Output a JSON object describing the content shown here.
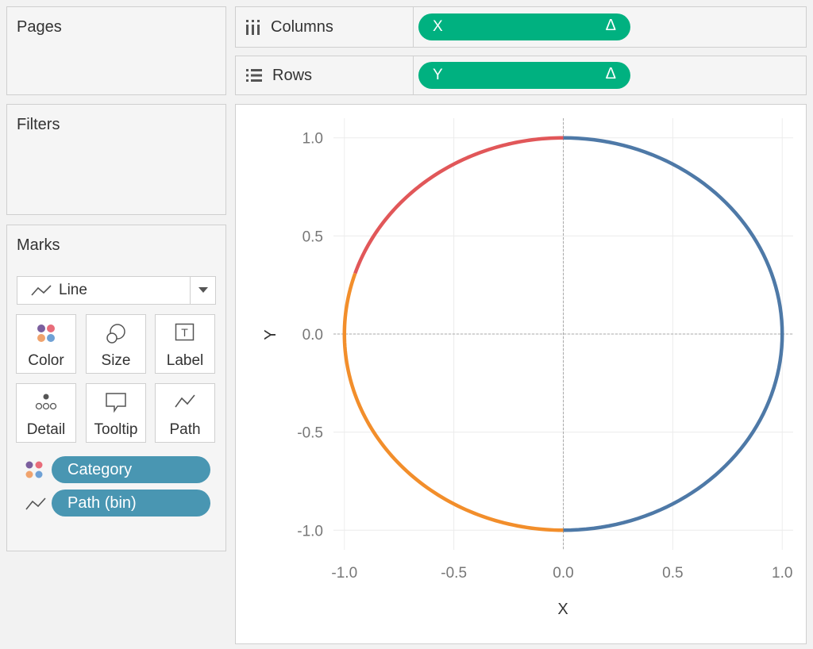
{
  "pages": {
    "title": "Pages"
  },
  "filters": {
    "title": "Filters"
  },
  "shelves": {
    "columns": {
      "label": "Columns",
      "pill": "X",
      "pill_delta": "Δ"
    },
    "rows": {
      "label": "Rows",
      "pill": "Y",
      "pill_delta": "Δ"
    }
  },
  "marks": {
    "title": "Marks",
    "mark_type": "Line",
    "cards": [
      "Color",
      "Size",
      "Label",
      "Detail",
      "Tooltip",
      "Path"
    ],
    "fields": [
      {
        "label": "Category",
        "encoding": "color"
      },
      {
        "label": "Path (bin)",
        "encoding": "path"
      }
    ]
  },
  "colors": {
    "pill_green": "#00b180",
    "pill_blue": "#4996b2",
    "series_blue": "#4e79a7",
    "series_orange": "#f28e2b",
    "series_red": "#e15759"
  },
  "chart_data": {
    "type": "line",
    "xlabel": "X",
    "ylabel": "Y",
    "xlim": [
      -1.05,
      1.05
    ],
    "ylim": [
      -1.1,
      1.1
    ],
    "xticks": [
      "-1.0",
      "-0.5",
      "0.0",
      "0.5",
      "1.0"
    ],
    "yticks": [
      "1.0",
      "0.5",
      "0.0",
      "-0.5",
      "-1.0"
    ],
    "grid": true,
    "series": [
      {
        "color": "#4e79a7",
        "angle_range_deg": [
          -90,
          90
        ]
      },
      {
        "color": "#f28e2b",
        "angle_range_deg": [
          162,
          270
        ]
      },
      {
        "color": "#e15759",
        "angle_range_deg": [
          90,
          162
        ]
      }
    ]
  }
}
